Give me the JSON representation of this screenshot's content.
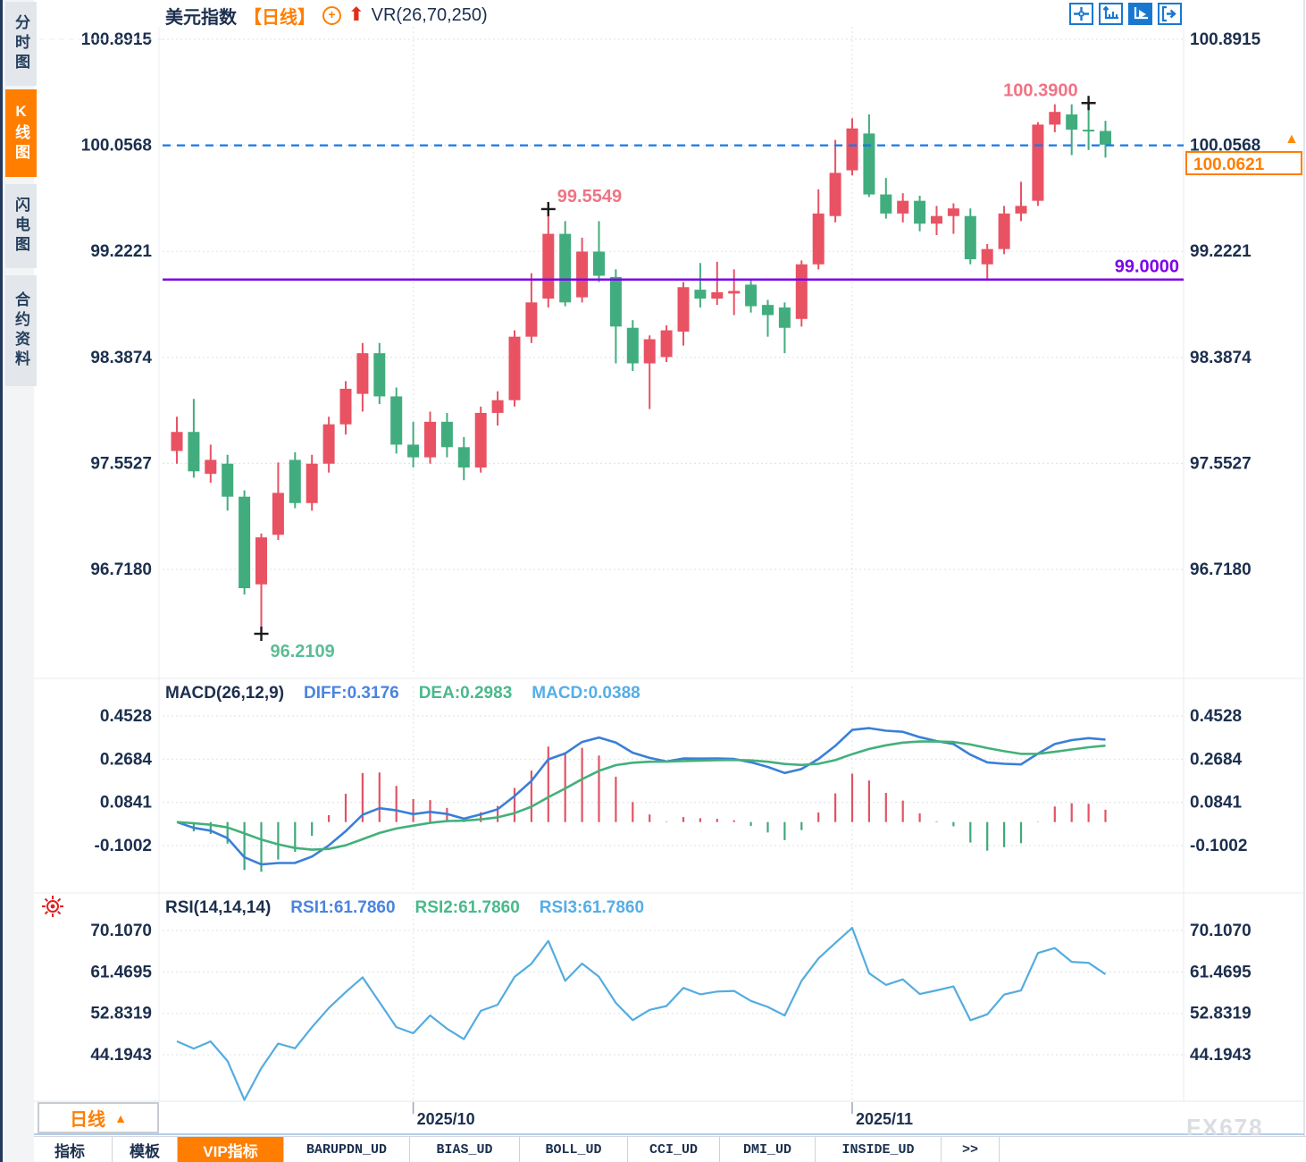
{
  "sidebar": {
    "items": [
      {
        "label": "分时图",
        "active": false
      },
      {
        "label": "K线图",
        "active": true
      },
      {
        "label": "闪电图",
        "active": false
      },
      {
        "label": "合约资料",
        "active": false
      }
    ]
  },
  "header": {
    "title": "美元指数",
    "period_tag": "【日线】",
    "plus_icon": "+",
    "up_arrow": "⬆",
    "indicator_label": "VR(26,70,250)"
  },
  "toolbar": {
    "icons": [
      "crosshair-icon",
      "axis-scale-icon",
      "axis-auto-icon",
      "pan-right-icon"
    ]
  },
  "price_marker": {
    "tick_label": "100.0568",
    "arrow": "▲",
    "current_price": "100.0621"
  },
  "macd_header": {
    "title": "MACD(26,12,9)",
    "diff": "DIFF:0.3176",
    "dea": "DEA:0.2983",
    "macd": "MACD:0.0388"
  },
  "rsi_header": {
    "title": "RSI(14,14,14)",
    "rsi1": "RSI1:61.7860",
    "rsi2": "RSI2:61.7860",
    "rsi3": "RSI3:61.7860"
  },
  "bottom": {
    "period_label": "日线",
    "period_arrow": "▲",
    "tabs": [
      {
        "label": "指标",
        "active": false,
        "mono": false
      },
      {
        "label": "模板",
        "active": false,
        "mono": false
      },
      {
        "label": "VIP指标",
        "active": true,
        "mono": false
      },
      {
        "label": "BARUPDN_UD",
        "active": false,
        "mono": true
      },
      {
        "label": "BIAS_UD",
        "active": false,
        "mono": true
      },
      {
        "label": "BOLL_UD",
        "active": false,
        "mono": true
      },
      {
        "label": "CCI_UD",
        "active": false,
        "mono": true
      },
      {
        "label": "DMI_UD",
        "active": false,
        "mono": true
      },
      {
        "label": "INSIDE_UD",
        "active": false,
        "mono": true
      },
      {
        "label": ">>",
        "active": false,
        "mono": true
      }
    ]
  },
  "watermark": "FX678",
  "chart_data": {
    "type": "candlestick+indicators",
    "symbol": "美元指数",
    "period": "日线",
    "colors": {
      "up": "#e85263",
      "down": "#41ad7e",
      "diff_line": "#3a7fd8",
      "dea_line": "#43b07a",
      "hist_up": "#e05465",
      "hist_down": "#3fa878",
      "rsi_line": "#53ace0",
      "support_line": "#7d06e8",
      "last_price_line": "#1978e8",
      "grid": "#e3e6ec",
      "accent": "#ff7e00",
      "anno_high": "#ef7484",
      "anno_low": "#5cbd95"
    },
    "main": {
      "y_ticks": [
        {
          "t": "100.8915",
          "p": 100.8915
        },
        {
          "t": "100.0568",
          "p": 100.0568
        },
        {
          "t": "99.2221",
          "p": 99.2221
        },
        {
          "t": "98.3874",
          "p": 98.3874
        },
        {
          "t": "97.5527",
          "p": 97.5527
        },
        {
          "t": "96.7180",
          "p": 96.718
        }
      ],
      "last_price": 100.0621,
      "last_price_line": 100.0568,
      "support_line": {
        "value": 99.0,
        "label": "99.0000"
      },
      "annotations": [
        {
          "text": "96.2109",
          "price": 96.2109,
          "index": 5,
          "side": "low",
          "align": "start"
        },
        {
          "text": "99.5549",
          "price": 99.5549,
          "index": 22,
          "side": "high",
          "align": "start"
        },
        {
          "text": "100.3900",
          "price": 100.39,
          "index": 54,
          "side": "high",
          "align": "end"
        }
      ],
      "candles": [
        [
          97.65,
          97.92,
          97.55,
          97.8
        ],
        [
          97.8,
          98.06,
          97.44,
          97.49
        ],
        [
          97.47,
          97.7,
          97.4,
          97.58
        ],
        [
          97.55,
          97.62,
          97.18,
          97.29
        ],
        [
          97.29,
          97.34,
          96.52,
          96.57
        ],
        [
          96.6,
          97.0,
          96.21,
          96.97
        ],
        [
          96.99,
          97.56,
          96.95,
          97.32
        ],
        [
          97.58,
          97.64,
          97.2,
          97.24
        ],
        [
          97.24,
          97.62,
          97.18,
          97.55
        ],
        [
          97.55,
          97.92,
          97.48,
          97.86
        ],
        [
          97.86,
          98.2,
          97.78,
          98.14
        ],
        [
          98.1,
          98.5,
          97.96,
          98.42
        ],
        [
          98.42,
          98.5,
          98.02,
          98.08
        ],
        [
          98.08,
          98.15,
          97.63,
          97.7
        ],
        [
          97.7,
          97.88,
          97.52,
          97.6
        ],
        [
          97.6,
          97.96,
          97.55,
          97.88
        ],
        [
          97.88,
          97.95,
          97.6,
          97.68
        ],
        [
          97.68,
          97.76,
          97.42,
          97.52
        ],
        [
          97.52,
          98.0,
          97.48,
          97.95
        ],
        [
          97.95,
          98.12,
          97.85,
          98.05
        ],
        [
          98.05,
          98.6,
          98.0,
          98.55
        ],
        [
          98.55,
          99.05,
          98.5,
          98.82
        ],
        [
          98.85,
          99.5549,
          98.78,
          99.36
        ],
        [
          99.36,
          99.46,
          98.79,
          98.82
        ],
        [
          98.86,
          99.33,
          98.82,
          99.22
        ],
        [
          99.22,
          99.46,
          98.98,
          99.03
        ],
        [
          99.02,
          99.08,
          98.34,
          98.63
        ],
        [
          98.62,
          98.68,
          98.28,
          98.34
        ],
        [
          98.34,
          98.56,
          97.98,
          98.53
        ],
        [
          98.39,
          98.64,
          98.35,
          98.6
        ],
        [
          98.59,
          98.98,
          98.48,
          98.94
        ],
        [
          98.92,
          99.13,
          98.78,
          98.85
        ],
        [
          98.85,
          99.14,
          98.8,
          98.9
        ],
        [
          98.89,
          99.08,
          98.72,
          98.91
        ],
        [
          98.96,
          99.0,
          98.74,
          98.79
        ],
        [
          98.8,
          98.84,
          98.55,
          98.72
        ],
        [
          98.78,
          98.82,
          98.42,
          98.62
        ],
        [
          98.69,
          99.15,
          98.63,
          99.12
        ],
        [
          99.12,
          99.71,
          99.08,
          99.52
        ],
        [
          99.5,
          100.1,
          99.45,
          99.84
        ],
        [
          99.86,
          100.27,
          99.82,
          100.19
        ],
        [
          100.15,
          100.3,
          99.65,
          99.67
        ],
        [
          99.67,
          99.8,
          99.48,
          99.52
        ],
        [
          99.52,
          99.68,
          99.45,
          99.62
        ],
        [
          99.62,
          99.66,
          99.38,
          99.44
        ],
        [
          99.44,
          99.58,
          99.35,
          99.5
        ],
        [
          99.5,
          99.6,
          99.36,
          99.56
        ],
        [
          99.5,
          99.56,
          99.12,
          99.16
        ],
        [
          99.12,
          99.28,
          98.99,
          99.24
        ],
        [
          99.24,
          99.58,
          99.2,
          99.52
        ],
        [
          99.52,
          99.77,
          99.46,
          99.58
        ],
        [
          99.62,
          100.24,
          99.58,
          100.22
        ],
        [
          100.22,
          100.38,
          100.16,
          100.32
        ],
        [
          100.3,
          100.38,
          99.98,
          100.18
        ],
        [
          100.18,
          100.39,
          100.02,
          100.17
        ],
        [
          100.17,
          100.25,
          99.96,
          100.0621
        ]
      ]
    },
    "x_axis": {
      "labels": [
        {
          "text": "2025/10",
          "index": 14
        },
        {
          "text": "2025/11",
          "index": 40
        }
      ]
    },
    "macd": {
      "params": [
        26,
        12,
        9
      ],
      "y_ticks": [
        {
          "t": "0.4528",
          "v": 0.4528
        },
        {
          "t": "0.2684",
          "v": 0.2684
        },
        {
          "t": "0.0841",
          "v": 0.0841
        },
        {
          "t": "-0.1002",
          "v": -0.1002
        }
      ]
    },
    "rsi": {
      "params": [
        14,
        14,
        14
      ],
      "y_ticks": [
        {
          "t": "70.1070",
          "v": 70.107
        },
        {
          "t": "61.4695",
          "v": 61.4695
        },
        {
          "t": "52.8319",
          "v": 52.8319
        },
        {
          "t": "44.1943",
          "v": 44.1943
        }
      ]
    }
  }
}
